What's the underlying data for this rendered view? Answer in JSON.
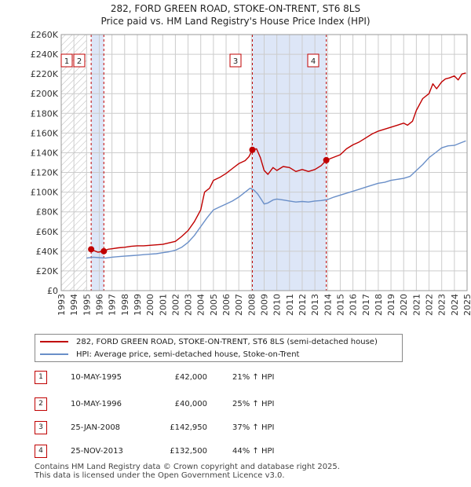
{
  "title_line1": "282, FORD GREEN ROAD, STOKE-ON-TRENT, ST6 8LS",
  "title_line2": "Price paid vs. HM Land Registry's House Price Index (HPI)",
  "legend": {
    "property": "282, FORD GREEN ROAD, STOKE-ON-TRENT, ST6 8LS (semi-detached house)",
    "hpi": "HPI: Average price, semi-detached house, Stoke-on-Trent"
  },
  "transactions": [
    {
      "num": "1",
      "date": "10-MAY-1995",
      "price": "£42,000",
      "hpi": "21% ↑ HPI"
    },
    {
      "num": "2",
      "date": "10-MAY-1996",
      "price": "£40,000",
      "hpi": "25% ↑ HPI"
    },
    {
      "num": "3",
      "date": "25-JAN-2008",
      "price": "£142,950",
      "hpi": "37% ↑ HPI"
    },
    {
      "num": "4",
      "date": "25-NOV-2013",
      "price": "£132,500",
      "hpi": "44% ↑ HPI"
    }
  ],
  "footer": {
    "line1": "Contains HM Land Registry data © Crown copyright and database right 2025.",
    "line2": "This data is licensed under the Open Government Licence v3.0."
  },
  "colors": {
    "property": "#c00000",
    "hpi": "#6a8fc8",
    "shade": "#dde6f7",
    "grid": "#cccccc",
    "vline": "#c00000"
  },
  "chart_data": {
    "type": "line",
    "title": "282, FORD GREEN ROAD, STOKE-ON-TRENT, ST6 8LS",
    "subtitle": "Price paid vs. HM Land Registry's House Price Index (HPI)",
    "xlabel": "",
    "ylabel": "",
    "xlim": [
      1993,
      2025
    ],
    "ylim": [
      0,
      260000
    ],
    "x_ticks": [
      1993,
      1994,
      1995,
      1996,
      1997,
      1998,
      1999,
      2000,
      2001,
      2002,
      2003,
      2004,
      2005,
      2006,
      2007,
      2008,
      2009,
      2010,
      2011,
      2012,
      2013,
      2014,
      2015,
      2016,
      2017,
      2018,
      2019,
      2020,
      2021,
      2022,
      2023,
      2024,
      2025
    ],
    "y_ticks": [
      {
        "value": 0,
        "label": "£0"
      },
      {
        "value": 20000,
        "label": "£20K"
      },
      {
        "value": 40000,
        "label": "£40K"
      },
      {
        "value": 60000,
        "label": "£60K"
      },
      {
        "value": 80000,
        "label": "£80K"
      },
      {
        "value": 100000,
        "label": "£100K"
      },
      {
        "value": 120000,
        "label": "£120K"
      },
      {
        "value": 140000,
        "label": "£140K"
      },
      {
        "value": 160000,
        "label": "£160K"
      },
      {
        "value": 180000,
        "label": "£180K"
      },
      {
        "value": 200000,
        "label": "£200K"
      },
      {
        "value": 220000,
        "label": "£220K"
      },
      {
        "value": 240000,
        "label": "£240K"
      },
      {
        "value": 260000,
        "label": "£260K"
      }
    ],
    "hatch_until": 1995.0,
    "shaded_spans": [
      [
        1995.36,
        1996.36
      ],
      [
        2008.07,
        2013.9
      ]
    ],
    "sales": [
      {
        "label": "1",
        "x": 1995.36,
        "y": 42000
      },
      {
        "label": "2",
        "x": 1996.36,
        "y": 40000
      },
      {
        "label": "3",
        "x": 2008.07,
        "y": 142950
      },
      {
        "label": "4",
        "x": 2013.9,
        "y": 132500
      }
    ],
    "series": [
      {
        "name": "282, FORD GREEN ROAD, STOKE-ON-TRENT, ST6 8LS (semi-detached house)",
        "x": [
          1995.36,
          1995.6,
          1995.9,
          1996.1,
          1996.36,
          1996.7,
          1997.0,
          1997.5,
          1998.0,
          1998.5,
          1999.0,
          1999.5,
          2000.0,
          2000.5,
          2001.0,
          2001.5,
          2002.0,
          2002.5,
          2003.0,
          2003.5,
          2004.0,
          2004.3,
          2004.7,
          2005.0,
          2005.5,
          2006.0,
          2006.5,
          2007.0,
          2007.5,
          2007.8,
          2008.07,
          2008.4,
          2008.7,
          2009.0,
          2009.3,
          2009.7,
          2010.0,
          2010.5,
          2011.0,
          2011.5,
          2012.0,
          2012.5,
          2013.0,
          2013.5,
          2013.9,
          2014.2,
          2014.6,
          2015.0,
          2015.5,
          2016.0,
          2016.5,
          2017.0,
          2017.5,
          2018.0,
          2018.5,
          2019.0,
          2019.5,
          2020.0,
          2020.3,
          2020.7,
          2021.0,
          2021.5,
          2022.0,
          2022.3,
          2022.6,
          2023.0,
          2023.3,
          2023.6,
          2024.0,
          2024.3,
          2024.6,
          2024.9
        ],
        "y": [
          42000,
          40500,
          39000,
          39500,
          40000,
          42000,
          42500,
          43500,
          44000,
          45000,
          45500,
          45500,
          46000,
          46500,
          47000,
          48500,
          50000,
          55000,
          61000,
          70000,
          82000,
          100000,
          104000,
          112000,
          115000,
          119000,
          124000,
          129000,
          132000,
          136000,
          142950,
          144000,
          135000,
          122000,
          118000,
          125000,
          122000,
          126000,
          125000,
          121000,
          123000,
          121000,
          123000,
          127000,
          132500,
          134000,
          136000,
          138000,
          144000,
          148000,
          151000,
          155000,
          159000,
          162000,
          164000,
          166000,
          168000,
          170000,
          168000,
          172000,
          183000,
          195000,
          200000,
          210000,
          205000,
          212000,
          215000,
          216000,
          218000,
          214000,
          220000,
          221000
        ]
      },
      {
        "name": "HPI: Average price, semi-detached house, Stoke-on-Trent",
        "x": [
          1995.0,
          1995.5,
          1996.0,
          1996.5,
          1997.0,
          1997.5,
          1998.0,
          1998.5,
          1999.0,
          1999.5,
          2000.0,
          2000.5,
          2001.0,
          2001.5,
          2002.0,
          2002.5,
          2003.0,
          2003.5,
          2004.0,
          2004.5,
          2005.0,
          2005.5,
          2006.0,
          2006.5,
          2007.0,
          2007.5,
          2007.9,
          2008.2,
          2008.5,
          2008.8,
          2009.0,
          2009.3,
          2009.7,
          2010.0,
          2010.5,
          2011.0,
          2011.5,
          2012.0,
          2012.5,
          2013.0,
          2013.5,
          2014.0,
          2014.5,
          2015.0,
          2015.5,
          2016.0,
          2016.5,
          2017.0,
          2017.5,
          2018.0,
          2018.5,
          2019.0,
          2019.5,
          2020.0,
          2020.5,
          2021.0,
          2021.5,
          2022.0,
          2022.5,
          2023.0,
          2023.5,
          2024.0,
          2024.5,
          2024.9
        ],
        "y": [
          33000,
          34000,
          33500,
          33000,
          34000,
          34500,
          35000,
          35500,
          36000,
          36500,
          37000,
          37500,
          38500,
          39500,
          41000,
          44000,
          49000,
          56000,
          65000,
          74000,
          82000,
          85000,
          88000,
          91000,
          95000,
          100000,
          104000,
          102000,
          98000,
          92000,
          88000,
          89000,
          92000,
          93000,
          92000,
          91000,
          90000,
          90500,
          90000,
          91000,
          91500,
          92500,
          95000,
          97000,
          99000,
          101000,
          103000,
          105000,
          107000,
          109000,
          110000,
          112000,
          113000,
          114000,
          116000,
          122000,
          128000,
          135000,
          140000,
          145000,
          147000,
          147500,
          150000,
          152000
        ]
      }
    ]
  }
}
